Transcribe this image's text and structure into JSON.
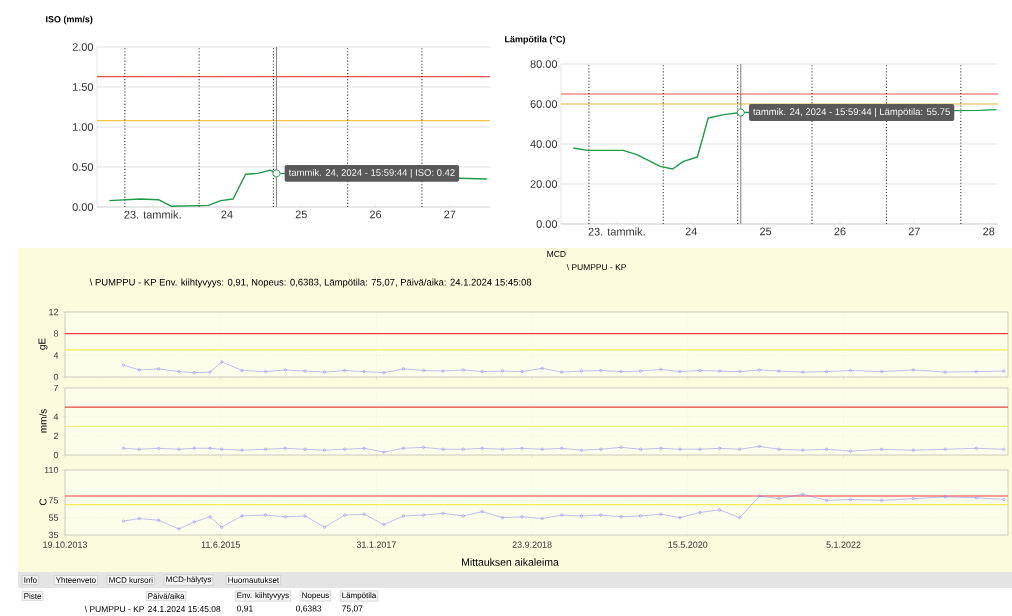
{
  "chart_data": [
    {
      "type": "line",
      "ylabel": "ISO (mm/s)",
      "color": "#1e9a4a",
      "x": [
        "2024-01-22T10:00",
        "2024-01-22T20:00",
        "2024-01-23T02:00",
        "2024-01-23T06:00",
        "2024-01-23T18:00",
        "2024-01-23T22:00",
        "2024-01-24T02:00",
        "2024-01-24T06:00",
        "2024-01-24T10:00",
        "2024-01-24T14:00",
        "2024-01-24T15:59:44",
        "2024-01-27T12:00"
      ],
      "values": [
        0.08,
        0.1,
        0.09,
        0.01,
        0.02,
        0.08,
        0.1,
        0.41,
        0.42,
        0.46,
        0.42,
        0.35
      ],
      "xlim": [
        "2024-01-22T06:00",
        "2024-01-27T13:00"
      ],
      "ylim": [
        0,
        2
      ],
      "xticks": [
        {
          "value": "2024-01-23",
          "label": "23. tammik."
        },
        {
          "value": "2024-01-24",
          "label": "24"
        },
        {
          "value": "2024-01-25",
          "label": "25"
        },
        {
          "value": "2024-01-26",
          "label": "26"
        },
        {
          "value": "2024-01-27",
          "label": "27"
        }
      ],
      "yticks": [
        {
          "value": 0,
          "label": "0.00"
        },
        {
          "value": 0.5,
          "label": "0.50"
        },
        {
          "value": 1,
          "label": "1.00"
        },
        {
          "value": 1.5,
          "label": "1.50"
        },
        {
          "value": 2,
          "label": "2.00"
        }
      ],
      "grid": "y",
      "ref_lines": [
        {
          "axis": "y",
          "value": 1.63,
          "color": "#e85050"
        },
        {
          "axis": "y",
          "value": 1.08,
          "color": "#f5c542"
        },
        {
          "axis": "x",
          "value": "2024-01-22T15:00",
          "color": "#333333",
          "line_style": "dotted"
        },
        {
          "axis": "x",
          "value": "2024-01-23T15:00",
          "color": "#333333",
          "line_style": "dotted"
        },
        {
          "axis": "x",
          "value": "2024-01-24T15:00",
          "color": "#333333",
          "line_style": "dotted"
        },
        {
          "axis": "x",
          "value": "2024-01-25T15:00",
          "color": "#333333",
          "line_style": "dotted"
        },
        {
          "axis": "x",
          "value": "2024-01-26T15:00",
          "color": "#333333",
          "line_style": "dotted"
        },
        {
          "axis": "x",
          "value": "2024-01-24T15:59:44",
          "color": "#888888",
          "line_style": "solid"
        }
      ],
      "annotations": [
        {
          "text": "tammik. 24, 2024 - 15:59:44 | ISO: 0.42",
          "x": "2024-01-24T15:59:44",
          "y": 0.42
        }
      ]
    },
    {
      "type": "line",
      "ylabel": "Lämpötila (°C)",
      "color": "#1e9a4a",
      "x": [
        "2024-01-22T10:00",
        "2024-01-22T14:30",
        "2024-01-23T02:00",
        "2024-01-23T06:30",
        "2024-01-23T14:00",
        "2024-01-23T18:00",
        "2024-01-23T21:30",
        "2024-01-24T02:00",
        "2024-01-24T05:30",
        "2024-01-24T10:30",
        "2024-01-24T15:59:44",
        "2024-01-27T21:00",
        "2024-01-28T02:30"
      ],
      "values": [
        38.0,
        36.8,
        36.8,
        34.7,
        28.8,
        27.5,
        31.3,
        33.5,
        53.0,
        54.7,
        55.75,
        56.8,
        57.2
      ],
      "xlim": [
        "2024-01-22T06:00",
        "2024-01-28T03:00"
      ],
      "ylim": [
        0,
        80
      ],
      "xticks": [
        {
          "value": "2024-01-23",
          "label": "23. tammik."
        },
        {
          "value": "2024-01-24",
          "label": "24"
        },
        {
          "value": "2024-01-25",
          "label": "25"
        },
        {
          "value": "2024-01-26",
          "label": "26"
        },
        {
          "value": "2024-01-27",
          "label": "27"
        },
        {
          "value": "2024-01-28",
          "label": "28"
        }
      ],
      "yticks": [
        {
          "value": 0,
          "label": "0.00"
        },
        {
          "value": 20,
          "label": "20.00"
        },
        {
          "value": 40,
          "label": "40.00"
        },
        {
          "value": 60,
          "label": "60.00"
        },
        {
          "value": 80,
          "label": "80.00"
        }
      ],
      "grid": "y",
      "ref_lines": [
        {
          "axis": "y",
          "value": 65,
          "color": "#e85050"
        },
        {
          "axis": "y",
          "value": 60,
          "color": "#f5c542"
        },
        {
          "axis": "x",
          "value": "2024-01-22T15:00",
          "color": "#333333",
          "line_style": "dotted"
        },
        {
          "axis": "x",
          "value": "2024-01-23T15:00",
          "color": "#333333",
          "line_style": "dotted"
        },
        {
          "axis": "x",
          "value": "2024-01-24T15:00",
          "color": "#333333",
          "line_style": "dotted"
        },
        {
          "axis": "x",
          "value": "2024-01-25T15:00",
          "color": "#333333",
          "line_style": "dotted"
        },
        {
          "axis": "x",
          "value": "2024-01-26T15:00",
          "color": "#333333",
          "line_style": "dotted"
        },
        {
          "axis": "x",
          "value": "2024-01-27T15:00",
          "color": "#333333",
          "line_style": "dotted"
        },
        {
          "axis": "x",
          "value": "2024-01-24T15:59:44",
          "color": "#888888",
          "line_style": "solid"
        }
      ],
      "annotations": [
        {
          "text": "tammik. 24, 2024 - 15:59:44 | Lämpötila: 55.75",
          "x": "2024-01-24T15:59:44",
          "y": 55.75
        }
      ]
    },
    {
      "type": "line",
      "ylabel": "gE",
      "color": "#8080ee",
      "marker": "circle",
      "x": [
        "2014-06-01",
        "2014-08-01",
        "2014-10-15",
        "2015-01-01",
        "2015-03-01",
        "2015-05-01",
        "2015-06-15",
        "2015-09-01",
        "2015-12-01",
        "2016-02-15",
        "2016-05-01",
        "2016-07-15",
        "2016-10-01",
        "2016-12-15",
        "2017-03-01",
        "2017-05-15",
        "2017-08-01",
        "2017-10-15",
        "2018-01-01",
        "2018-03-15",
        "2018-06-01",
        "2018-08-15",
        "2018-11-01",
        "2019-01-15",
        "2019-04-01",
        "2019-06-15",
        "2019-09-01",
        "2019-11-15",
        "2020-02-01",
        "2020-04-15",
        "2020-07-01",
        "2020-09-15",
        "2020-12-01",
        "2021-02-15",
        "2021-05-01",
        "2021-08-01",
        "2021-11-01",
        "2022-02-01",
        "2022-06-01",
        "2022-10-01",
        "2023-02-01",
        "2023-06-01",
        "2023-09-15"
      ],
      "values": [
        2.2,
        1.3,
        1.5,
        1.0,
        0.8,
        0.9,
        2.8,
        1.2,
        1.0,
        1.3,
        1.1,
        0.9,
        1.2,
        1.0,
        0.8,
        1.5,
        1.2,
        1.1,
        1.3,
        1.0,
        1.1,
        1.0,
        1.6,
        0.9,
        1.1,
        1.2,
        1.0,
        1.1,
        1.4,
        1.0,
        1.2,
        1.1,
        1.0,
        1.3,
        1.1,
        0.9,
        1.0,
        1.2,
        1.0,
        1.3,
        0.9,
        1.0,
        1.1
      ],
      "xlim": [
        "2013-10-19",
        "2023-10-01"
      ],
      "ylim": [
        0,
        12
      ],
      "xticks": [
        {
          "value": "2013-10-19",
          "label": null
        },
        {
          "value": "2015-06-11",
          "label": null
        },
        {
          "value": "2017-01-31",
          "label": null
        },
        {
          "value": "2018-09-23",
          "label": null
        },
        {
          "value": "2020-05-15",
          "label": null
        },
        {
          "value": "2022-01-05",
          "label": null
        }
      ],
      "yticks": [
        0,
        4,
        8,
        12
      ],
      "tick_labels": "y",
      "grid": true,
      "ref_lines": [
        {
          "axis": "y",
          "value": 8,
          "color": "#ee4040"
        },
        {
          "axis": "y",
          "value": 5,
          "color": "#f0ee50"
        }
      ],
      "annotations": [
        "\\ PUMPPU - KP Env. kiihtyvyys: 0,91, Nopeus: 0,6383, Lämpötila: 75,07, Päivä/aika: 24.1.2024 15:45:08",
        "MCD",
        "\\ PUMPPU - KP"
      ]
    },
    {
      "type": "line",
      "ylabel": "mm/s",
      "color": "#8080ee",
      "marker": "circle",
      "x": [
        "2014-06-01",
        "2014-08-01",
        "2014-10-15",
        "2015-01-01",
        "2015-03-01",
        "2015-05-01",
        "2015-06-15",
        "2015-09-01",
        "2015-12-01",
        "2016-02-15",
        "2016-05-01",
        "2016-07-15",
        "2016-10-01",
        "2016-12-15",
        "2017-03-01",
        "2017-05-15",
        "2017-08-01",
        "2017-10-15",
        "2018-01-01",
        "2018-03-15",
        "2018-06-01",
        "2018-08-15",
        "2018-11-01",
        "2019-01-15",
        "2019-04-01",
        "2019-06-15",
        "2019-09-01",
        "2019-11-15",
        "2020-02-01",
        "2020-04-15",
        "2020-07-01",
        "2020-09-15",
        "2020-12-01",
        "2021-02-15",
        "2021-05-01",
        "2021-08-01",
        "2021-11-01",
        "2022-02-01",
        "2022-06-01",
        "2022-10-01",
        "2023-02-01",
        "2023-06-01",
        "2023-09-15"
      ],
      "values": [
        0.7,
        0.6,
        0.7,
        0.6,
        0.7,
        0.7,
        0.6,
        0.5,
        0.6,
        0.7,
        0.6,
        0.5,
        0.6,
        0.7,
        0.3,
        0.7,
        0.8,
        0.6,
        0.6,
        0.7,
        0.6,
        0.7,
        0.6,
        0.7,
        0.5,
        0.6,
        0.8,
        0.6,
        0.7,
        0.6,
        0.6,
        0.7,
        0.6,
        0.9,
        0.6,
        0.5,
        0.6,
        0.4,
        0.6,
        0.5,
        0.6,
        0.7,
        0.6
      ],
      "xlim": [
        "2013-10-19",
        "2023-10-01"
      ],
      "ylim": [
        0,
        7
      ],
      "xticks": [
        {
          "value": "2013-10-19",
          "label": null
        },
        {
          "value": "2015-06-11",
          "label": null
        },
        {
          "value": "2017-01-31",
          "label": null
        },
        {
          "value": "2018-09-23",
          "label": null
        },
        {
          "value": "2020-05-15",
          "label": null
        },
        {
          "value": "2022-01-05",
          "label": null
        }
      ],
      "yticks": [
        0,
        2,
        4,
        7
      ],
      "tick_labels": "y",
      "grid": true,
      "ref_lines": [
        {
          "axis": "y",
          "value": 5,
          "color": "#ee4040"
        },
        {
          "axis": "y",
          "value": 3,
          "color": "#f0ee50"
        }
      ]
    },
    {
      "type": "line",
      "ylabel": "C",
      "xlabel": "Mittauksen aikaleima",
      "color": "#8080ee",
      "marker": "circle",
      "x": [
        "2014-06-01",
        "2014-08-01",
        "2014-10-15",
        "2015-01-01",
        "2015-03-01",
        "2015-05-01",
        "2015-06-15",
        "2015-09-01",
        "2015-12-01",
        "2016-02-15",
        "2016-05-01",
        "2016-07-15",
        "2016-10-01",
        "2016-12-15",
        "2017-03-01",
        "2017-05-15",
        "2017-08-01",
        "2017-10-15",
        "2018-01-01",
        "2018-03-15",
        "2018-06-01",
        "2018-08-15",
        "2018-11-01",
        "2019-01-15",
        "2019-04-01",
        "2019-06-15",
        "2019-09-01",
        "2019-11-15",
        "2020-02-01",
        "2020-04-15",
        "2020-07-01",
        "2020-09-15",
        "2020-12-01",
        "2021-02-15",
        "2021-05-01",
        "2021-08-01",
        "2021-11-01",
        "2022-02-01",
        "2022-06-01",
        "2022-10-01",
        "2023-02-01",
        "2023-06-01",
        "2023-09-15"
      ],
      "values": [
        51,
        54,
        52,
        42,
        50,
        56,
        44,
        57,
        58,
        56,
        57,
        44,
        58,
        59,
        47,
        57,
        58,
        60,
        57,
        62,
        55,
        56,
        54,
        58,
        57,
        58,
        56,
        57,
        59,
        55,
        61,
        64,
        55,
        80,
        77,
        82,
        75,
        76,
        75,
        77,
        79,
        78,
        76
      ],
      "xlim": [
        "2013-10-19",
        "2023-10-01"
      ],
      "ylim": [
        35,
        110
      ],
      "xticks": [
        {
          "value": "2013-10-19",
          "label": "19.10.2013"
        },
        {
          "value": "2015-06-11",
          "label": "11.6.2015"
        },
        {
          "value": "2017-01-31",
          "label": "31.1.2017"
        },
        {
          "value": "2018-09-23",
          "label": "23.9.2018"
        },
        {
          "value": "2020-05-15",
          "label": "15.5.2020"
        },
        {
          "value": "2022-01-05",
          "label": "5.1.2022"
        }
      ],
      "yticks": [
        35,
        55,
        75,
        110
      ],
      "grid": true,
      "ref_lines": [
        {
          "axis": "y",
          "value": 80,
          "color": "#ee4040"
        },
        {
          "axis": "y",
          "value": 70,
          "color": "#f0ee50"
        }
      ],
      "annotations": [
        "Info",
        "Yhteenveto",
        "MCD kursori",
        "MCD-hälytys",
        "Huomautukset",
        "Piste",
        "Päivä/aika",
        "Env. kiihtyvyys",
        "Nopeus",
        "Lämpötila",
        "\\ PUMPPU - KP",
        "24.1.2024 15:45:08",
        "0,91",
        "0,6383",
        "75,07"
      ]
    }
  ]
}
